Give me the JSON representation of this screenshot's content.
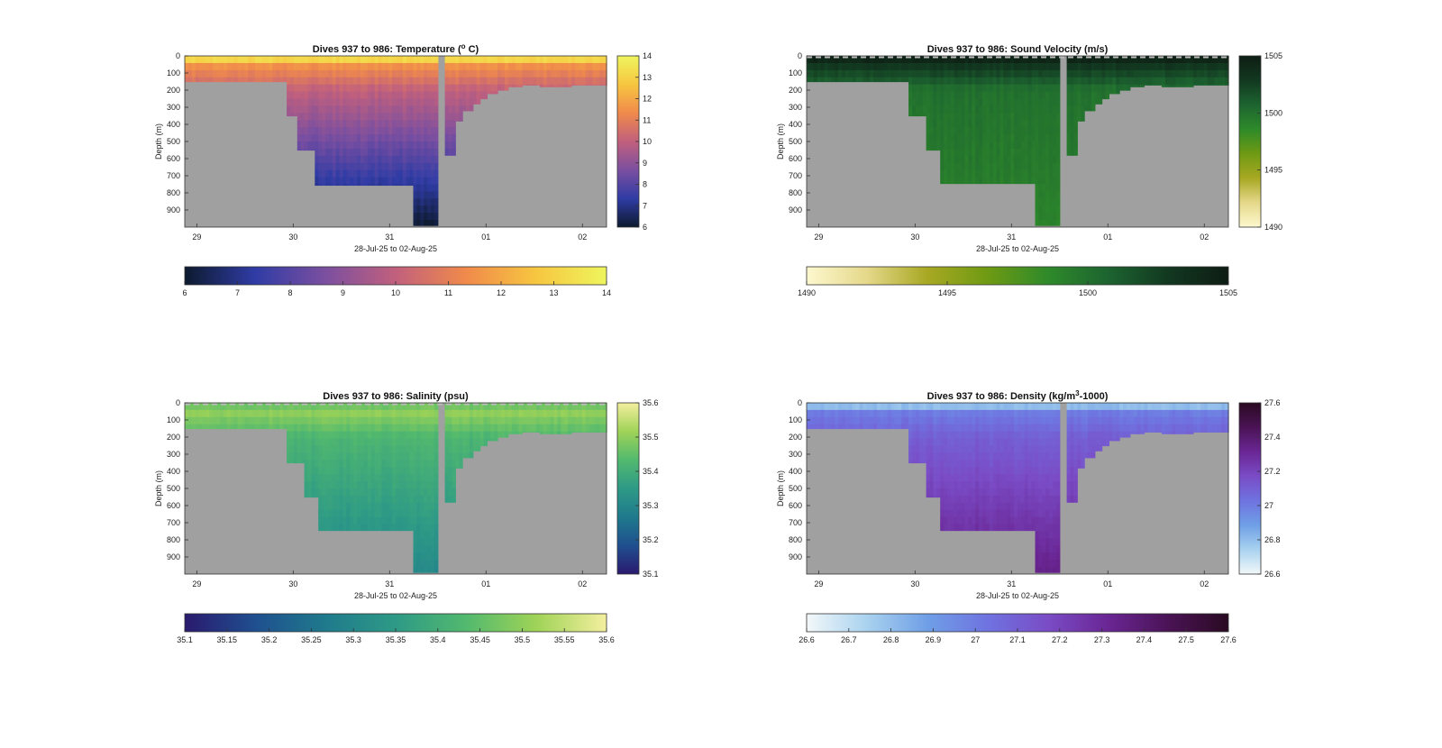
{
  "chart_data": [
    {
      "type": "heatmap",
      "title": "Dives 937 to 986: Temperature (",
      "title_sup": "o",
      "title_end": " C)",
      "xlabel": "28-Jul-25 to 02-Aug-25",
      "ylabel": "Depth (m)",
      "x_ticks": [
        "29",
        "30",
        "31",
        "01",
        "02"
      ],
      "x_range": [
        "2025-07-28T21:00",
        "2025-08-02T06:00"
      ],
      "x_tick_dates": [
        "2025-07-29",
        "2025-07-30",
        "2025-07-31",
        "2025-08-01",
        "2025-08-02"
      ],
      "y_ticks": [
        0,
        100,
        200,
        300,
        400,
        500,
        600,
        700,
        800,
        900
      ],
      "y_range": [
        0,
        1000
      ],
      "y_reversed": true,
      "color_range": [
        6,
        14
      ],
      "colormap": [
        "#0d1a2e",
        "#2f3ca5",
        "#7b4fa0",
        "#c1607d",
        "#f08a4b",
        "#f7c640",
        "#eef55e"
      ],
      "surface": [
        14,
        11.5,
        10
      ],
      "deep": 6,
      "right_colorbar_ticks": [
        "6",
        "7",
        "8",
        "9",
        "10",
        "11",
        "12",
        "13",
        "14"
      ],
      "bottom_colorbar_ticks": [
        "6",
        "7",
        "8",
        "9",
        "10",
        "11",
        "12",
        "13",
        "14"
      ],
      "top_dashes": false,
      "bottom_profile_m": [
        [
          0,
          150
        ],
        [
          0.24,
          150
        ],
        [
          0.24,
          350
        ],
        [
          0.27,
          350
        ],
        [
          0.27,
          550
        ],
        [
          0.31,
          550
        ],
        [
          0.31,
          755
        ],
        [
          0.54,
          755
        ],
        [
          0.54,
          990
        ],
        [
          0.6,
          990
        ],
        [
          0.6,
          0
        ],
        [
          0.62,
          0
        ],
        [
          0.62,
          580
        ],
        [
          0.64,
          580
        ],
        [
          0.64,
          380
        ],
        [
          0.66,
          380
        ],
        [
          0.66,
          320
        ],
        [
          0.68,
          320
        ],
        [
          0.68,
          280
        ],
        [
          0.7,
          280
        ],
        [
          0.7,
          250
        ],
        [
          0.72,
          250
        ],
        [
          0.72,
          220
        ],
        [
          0.74,
          220
        ],
        [
          0.74,
          200
        ],
        [
          0.77,
          200
        ],
        [
          0.77,
          180
        ],
        [
          0.8,
          180
        ],
        [
          0.8,
          170
        ],
        [
          0.84,
          170
        ],
        [
          0.84,
          180
        ],
        [
          0.92,
          180
        ],
        [
          0.92,
          170
        ],
        [
          1,
          160
        ]
      ]
    },
    {
      "type": "heatmap",
      "title": "Dives 937 to 986: Sound Velocity (m/s)",
      "xlabel": "28-Jul-25 to 02-Aug-25",
      "ylabel": "Depth (m)",
      "x_ticks": [
        "29",
        "30",
        "31",
        "01",
        "02"
      ],
      "x_range": [
        "2025-07-28T21:00",
        "2025-08-02T06:00"
      ],
      "x_tick_dates": [
        "2025-07-29",
        "2025-07-30",
        "2025-07-31",
        "2025-08-01",
        "2025-08-02"
      ],
      "y_ticks": [
        0,
        100,
        200,
        300,
        400,
        500,
        600,
        700,
        800,
        900
      ],
      "y_range": [
        0,
        1000
      ],
      "y_reversed": true,
      "color_range": [
        1490,
        1505
      ],
      "colormap": [
        "#fdf8cf",
        "#e5d88a",
        "#a8a823",
        "#6f9a13",
        "#2e8a2a",
        "#1d6430",
        "#123820",
        "#0e1d14"
      ],
      "surface": [
        1505,
        1503,
        1500
      ],
      "deep": 1499,
      "right_colorbar_ticks": [
        "1490",
        "1495",
        "1500",
        "1505"
      ],
      "bottom_colorbar_ticks": [
        "1490",
        "1495",
        "1500",
        "1505"
      ],
      "top_dashes": true,
      "bottom_profile_m": [
        [
          0,
          150
        ],
        [
          0.24,
          150
        ],
        [
          0.24,
          350
        ],
        [
          0.28,
          350
        ],
        [
          0.28,
          550
        ],
        [
          0.32,
          550
        ],
        [
          0.32,
          745
        ],
        [
          0.54,
          745
        ],
        [
          0.54,
          990
        ],
        [
          0.6,
          990
        ],
        [
          0.6,
          0
        ],
        [
          0.62,
          0
        ],
        [
          0.62,
          580
        ],
        [
          0.64,
          580
        ],
        [
          0.64,
          380
        ],
        [
          0.66,
          380
        ],
        [
          0.66,
          320
        ],
        [
          0.68,
          320
        ],
        [
          0.68,
          280
        ],
        [
          0.7,
          280
        ],
        [
          0.7,
          250
        ],
        [
          0.72,
          250
        ],
        [
          0.72,
          220
        ],
        [
          0.74,
          220
        ],
        [
          0.74,
          200
        ],
        [
          0.77,
          200
        ],
        [
          0.77,
          180
        ],
        [
          0.8,
          180
        ],
        [
          0.8,
          170
        ],
        [
          0.84,
          170
        ],
        [
          0.84,
          180
        ],
        [
          0.92,
          180
        ],
        [
          0.92,
          170
        ],
        [
          1,
          160
        ]
      ]
    },
    {
      "type": "heatmap",
      "title": "Dives 937 to 986: Salinity (psu)",
      "xlabel": "28-Jul-25 to 02-Aug-25",
      "ylabel": "Depth (m)",
      "x_ticks": [
        "29",
        "30",
        "31",
        "01",
        "02"
      ],
      "x_range": [
        "2025-07-28T21:00",
        "2025-08-02T06:00"
      ],
      "x_tick_dates": [
        "2025-07-29",
        "2025-07-30",
        "2025-07-31",
        "2025-08-01",
        "2025-08-02"
      ],
      "y_ticks": [
        0,
        100,
        200,
        300,
        400,
        500,
        600,
        700,
        800,
        900
      ],
      "y_range": [
        0,
        1000
      ],
      "y_reversed": true,
      "color_range": [
        35.1,
        35.6
      ],
      "colormap": [
        "#2a1a6e",
        "#1f4f8f",
        "#1f7a8c",
        "#2e9a86",
        "#52b96e",
        "#9fd357",
        "#f4ef9f"
      ],
      "surface": [
        35.45,
        35.5,
        35.42
      ],
      "deep": 35.3,
      "right_colorbar_ticks": [
        "35.1",
        "35.2",
        "35.3",
        "35.4",
        "35.5",
        "35.6"
      ],
      "bottom_colorbar_ticks": [
        "35.1",
        "35.15",
        "35.2",
        "35.25",
        "35.3",
        "35.35",
        "35.4",
        "35.45",
        "35.5",
        "35.55",
        "35.6"
      ],
      "top_dashes": true,
      "bottom_profile_m": [
        [
          0,
          150
        ],
        [
          0.24,
          150
        ],
        [
          0.24,
          350
        ],
        [
          0.28,
          350
        ],
        [
          0.28,
          550
        ],
        [
          0.32,
          550
        ],
        [
          0.32,
          745
        ],
        [
          0.54,
          745
        ],
        [
          0.54,
          990
        ],
        [
          0.6,
          990
        ],
        [
          0.6,
          0
        ],
        [
          0.62,
          0
        ],
        [
          0.62,
          580
        ],
        [
          0.64,
          580
        ],
        [
          0.64,
          380
        ],
        [
          0.66,
          380
        ],
        [
          0.66,
          320
        ],
        [
          0.68,
          320
        ],
        [
          0.68,
          280
        ],
        [
          0.7,
          280
        ],
        [
          0.7,
          250
        ],
        [
          0.72,
          250
        ],
        [
          0.72,
          220
        ],
        [
          0.74,
          220
        ],
        [
          0.74,
          200
        ],
        [
          0.77,
          200
        ],
        [
          0.77,
          180
        ],
        [
          0.8,
          180
        ],
        [
          0.8,
          170
        ],
        [
          0.84,
          170
        ],
        [
          0.84,
          180
        ],
        [
          0.92,
          180
        ],
        [
          0.92,
          170
        ],
        [
          1,
          160
        ]
      ]
    },
    {
      "type": "heatmap",
      "title": "Dives 937 to 986: Density (kg/m",
      "title_sup": "3",
      "title_end": "-1000)",
      "xlabel": "28-Jul-25 to 02-Aug-25",
      "ylabel": "Depth (m)",
      "x_ticks": [
        "29",
        "30",
        "31",
        "01",
        "02"
      ],
      "x_range": [
        "2025-07-28T21:00",
        "2025-08-02T06:00"
      ],
      "x_tick_dates": [
        "2025-07-29",
        "2025-07-30",
        "2025-07-31",
        "2025-08-01",
        "2025-08-02"
      ],
      "y_ticks": [
        0,
        100,
        200,
        300,
        400,
        500,
        600,
        700,
        800,
        900
      ],
      "y_range": [
        0,
        1000
      ],
      "y_reversed": true,
      "color_range": [
        26.6,
        27.6
      ],
      "colormap": [
        "#f3f8f9",
        "#a9d2ef",
        "#6f9fe6",
        "#6f73e0",
        "#7a4cc6",
        "#6a2694",
        "#4a1355",
        "#2a0a22"
      ],
      "surface": [
        26.7,
        27.0,
        27.1
      ],
      "deep": 27.35,
      "right_colorbar_ticks": [
        "26.6",
        "26.8",
        "27",
        "27.2",
        "27.4",
        "27.6"
      ],
      "bottom_colorbar_ticks": [
        "26.6",
        "26.7",
        "26.8",
        "26.9",
        "27",
        "27.1",
        "27.2",
        "27.3",
        "27.4",
        "27.5",
        "27.6"
      ],
      "top_dashes": false,
      "bottom_profile_m": [
        [
          0,
          150
        ],
        [
          0.24,
          150
        ],
        [
          0.24,
          350
        ],
        [
          0.28,
          350
        ],
        [
          0.28,
          550
        ],
        [
          0.32,
          550
        ],
        [
          0.32,
          745
        ],
        [
          0.54,
          745
        ],
        [
          0.54,
          990
        ],
        [
          0.6,
          990
        ],
        [
          0.6,
          0
        ],
        [
          0.62,
          0
        ],
        [
          0.62,
          580
        ],
        [
          0.64,
          580
        ],
        [
          0.64,
          380
        ],
        [
          0.66,
          380
        ],
        [
          0.66,
          320
        ],
        [
          0.68,
          320
        ],
        [
          0.68,
          280
        ],
        [
          0.7,
          280
        ],
        [
          0.7,
          250
        ],
        [
          0.72,
          250
        ],
        [
          0.72,
          220
        ],
        [
          0.74,
          220
        ],
        [
          0.74,
          200
        ],
        [
          0.77,
          200
        ],
        [
          0.77,
          180
        ],
        [
          0.8,
          180
        ],
        [
          0.8,
          170
        ],
        [
          0.84,
          170
        ],
        [
          0.84,
          180
        ],
        [
          0.92,
          180
        ],
        [
          0.92,
          170
        ],
        [
          1,
          160
        ]
      ]
    }
  ],
  "colors": {
    "mask": "#a0a0a0",
    "axis": "#333333",
    "background": "#ffffff"
  }
}
